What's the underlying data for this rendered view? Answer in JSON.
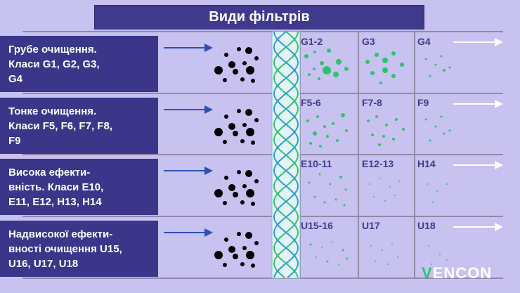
{
  "title": "Види фільтрів",
  "rows": [
    {
      "label_lines": [
        "Грубе очищення.",
        "Класи G1, G2, G3,",
        "G4"
      ],
      "classes": [
        "G1-2",
        "G3",
        "G4"
      ]
    },
    {
      "label_lines": [
        "Тонке очищення.",
        "Класи F5, F6, F7, F8,",
        "F9"
      ],
      "classes": [
        "F5-6",
        "F7-8",
        "F9"
      ]
    },
    {
      "label_lines": [
        "Висока ефекти-",
        "вність. Класи E10,",
        "E11, E12, H13, H14"
      ],
      "classes": [
        "E10-11",
        "E12-13",
        "H14"
      ]
    },
    {
      "label_lines": [
        "Надвисокої ефекти-",
        "вності очищення U15,",
        "U16, U17, U18"
      ],
      "classes": [
        "U15-16",
        "U17",
        "U18"
      ]
    }
  ],
  "colors": {
    "background": "#c8c2f0",
    "label_bg": "#3b368a",
    "arrow": "#2f4fb5",
    "particle": "#000000",
    "filtered_particle": "#2ec46d",
    "filter_stripe_green": "#2ec46d",
    "filter_stripe_blue": "#2f9ad6",
    "exit_arrow": "#ffffff"
  },
  "logo": {
    "prefix": "V",
    "rest": "ENCON"
  }
}
